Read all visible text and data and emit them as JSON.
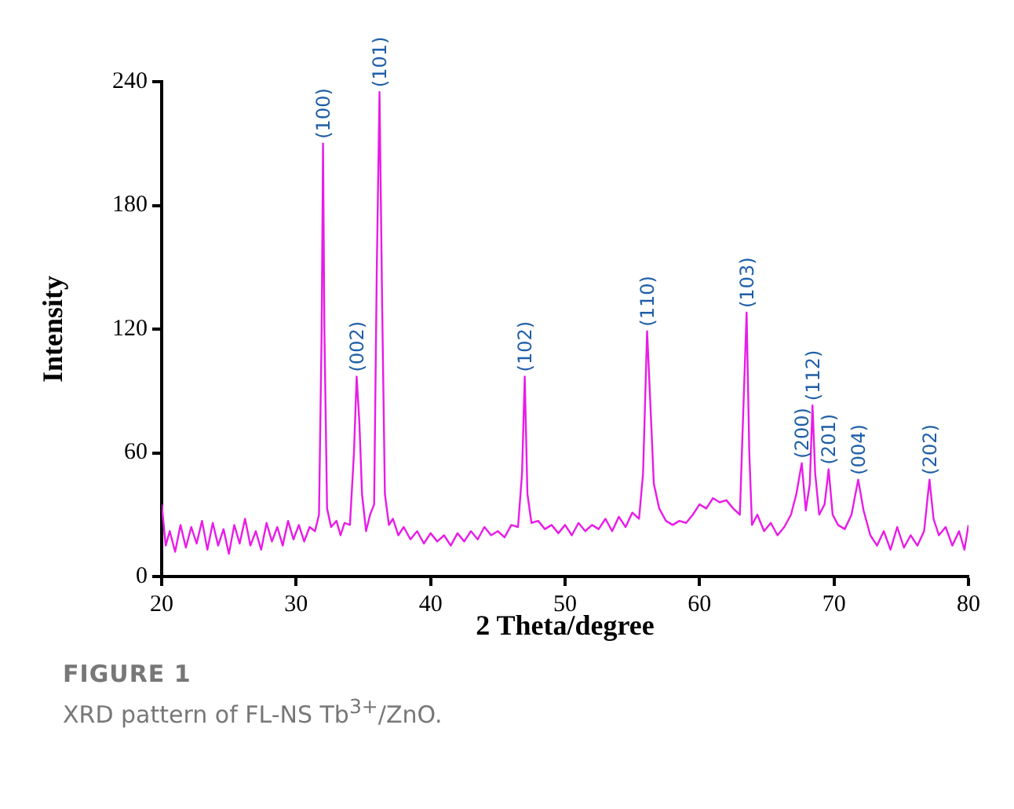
{
  "chart_data": {
    "type": "line",
    "xlabel": "2 Theta/degree",
    "ylabel": "Intensity",
    "xlim": [
      20,
      80
    ],
    "xticks": [
      20,
      30,
      40,
      50,
      60,
      70,
      80
    ],
    "ylim": [
      0,
      240
    ],
    "yticks": [
      0,
      60,
      120,
      180,
      240
    ],
    "grid": false,
    "legend": false,
    "marker": "none",
    "line_style": "solid",
    "series": [
      {
        "color": "#e81ce8",
        "x": [
          20,
          20.3,
          20.6,
          21,
          21.4,
          21.8,
          22.2,
          22.6,
          23,
          23.4,
          23.8,
          24.2,
          24.6,
          25,
          25.4,
          25.8,
          26.2,
          26.6,
          27,
          27.4,
          27.8,
          28.2,
          28.6,
          29,
          29.4,
          29.8,
          30.2,
          30.6,
          31,
          31.4,
          31.7,
          31.9,
          32,
          32.1,
          32.3,
          32.6,
          33,
          33.3,
          33.6,
          34,
          34.3,
          34.5,
          34.7,
          34.9,
          35.2,
          35.5,
          35.8,
          36,
          36.2,
          36.4,
          36.6,
          36.9,
          37.2,
          37.6,
          38,
          38.5,
          39,
          39.5,
          40,
          40.5,
          41,
          41.5,
          42,
          42.5,
          43,
          43.5,
          44,
          44.5,
          45,
          45.5,
          46,
          46.5,
          46.8,
          47,
          47.2,
          47.5,
          48,
          48.5,
          49,
          49.5,
          50,
          50.5,
          51,
          51.5,
          52,
          52.5,
          53,
          53.5,
          54,
          54.5,
          55,
          55.5,
          55.8,
          56.1,
          56.3,
          56.6,
          57,
          57.5,
          58,
          58.5,
          59,
          59.5,
          60,
          60.5,
          61,
          61.5,
          62,
          62.5,
          63,
          63.2,
          63.5,
          63.7,
          63.9,
          64.3,
          64.8,
          65.3,
          65.8,
          66.3,
          66.8,
          67.2,
          67.6,
          67.9,
          68.2,
          68.4,
          68.6,
          68.9,
          69.3,
          69.6,
          69.9,
          70.3,
          70.8,
          71.3,
          71.8,
          72.2,
          72.7,
          73.2,
          73.7,
          74.2,
          74.7,
          75.2,
          75.7,
          76.2,
          76.7,
          77.1,
          77.4,
          77.8,
          78.3,
          78.8,
          79.3,
          79.7,
          80
        ],
        "values": [
          35,
          15,
          22,
          12,
          25,
          14,
          24,
          16,
          27,
          13,
          26,
          15,
          23,
          11,
          25,
          16,
          28,
          15,
          22,
          13,
          26,
          17,
          24,
          15,
          27,
          18,
          25,
          17,
          24,
          22,
          30,
          120,
          210,
          120,
          33,
          24,
          27,
          20,
          26,
          25,
          60,
          97,
          75,
          40,
          22,
          30,
          35,
          150,
          235,
          130,
          40,
          25,
          28,
          20,
          24,
          18,
          22,
          16,
          21,
          17,
          20,
          15,
          21,
          17,
          22,
          18,
          24,
          20,
          22,
          19,
          25,
          24,
          50,
          97,
          40,
          26,
          27,
          23,
          25,
          21,
          25,
          20,
          26,
          22,
          25,
          23,
          28,
          22,
          29,
          24,
          31,
          28,
          50,
          119,
          90,
          45,
          33,
          27,
          25,
          27,
          26,
          30,
          35,
          33,
          38,
          36,
          37,
          33,
          30,
          70,
          128,
          60,
          25,
          30,
          22,
          26,
          20,
          24,
          30,
          40,
          55,
          32,
          45,
          83,
          50,
          30,
          35,
          52,
          30,
          25,
          23,
          30,
          47,
          32,
          20,
          15,
          22,
          13,
          24,
          14,
          20,
          15,
          22,
          47,
          28,
          20,
          24,
          15,
          22,
          13,
          25
        ]
      }
    ],
    "annotations": [
      {
        "text": "(100)",
        "x": 32,
        "y": 210
      },
      {
        "text": "(002)",
        "x": 34.5,
        "y": 97
      },
      {
        "text": "(101)",
        "x": 36.2,
        "y": 235
      },
      {
        "text": "(102)",
        "x": 47,
        "y": 97
      },
      {
        "text": "(110)",
        "x": 56.1,
        "y": 119
      },
      {
        "text": "(103)",
        "x": 63.5,
        "y": 128
      },
      {
        "text": "(200)",
        "x": 67.6,
        "y": 55
      },
      {
        "text": "(112)",
        "x": 68.4,
        "y": 83
      },
      {
        "text": "(201)",
        "x": 69.6,
        "y": 52
      },
      {
        "text": "(004)",
        "x": 71.8,
        "y": 47
      },
      {
        "text": "(202)",
        "x": 77.1,
        "y": 47
      },
      "FIGURE 1",
      "XRD pattern of FL-NS Tb$^{3+}$/ZnO."
    ]
  }
}
